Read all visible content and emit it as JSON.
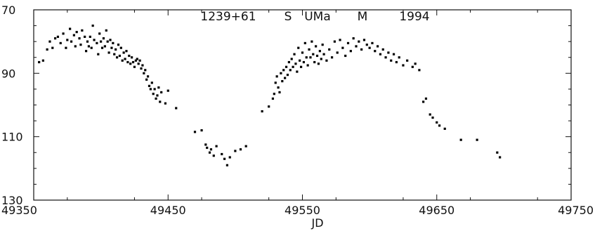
{
  "chart_data": {
    "type": "scatter",
    "title_parts": [
      "1239+61",
      "S",
      "UMa",
      "M",
      "1994"
    ],
    "xlabel": "JD",
    "ylabel": "",
    "xlim": [
      49350,
      49750
    ],
    "ylim": [
      70,
      130
    ],
    "y_inverted": true,
    "x_ticks": [
      49350,
      49450,
      49550,
      49650,
      49750
    ],
    "y_ticks": [
      70,
      90,
      110,
      130
    ],
    "grid": false,
    "legend": "none",
    "point_color": "#000000",
    "points": [
      [
        49354,
        86.5
      ],
      [
        49357,
        86
      ],
      [
        49360,
        82.5
      ],
      [
        49362,
        80
      ],
      [
        49364,
        82
      ],
      [
        49366,
        79
      ],
      [
        49368,
        78.5
      ],
      [
        49370,
        80.5
      ],
      [
        49372,
        77.5
      ],
      [
        49374,
        82
      ],
      [
        49375,
        79.5
      ],
      [
        49377,
        76
      ],
      [
        49378,
        80
      ],
      [
        49380,
        78
      ],
      [
        49381,
        81.5
      ],
      [
        49382,
        77
      ],
      [
        49384,
        79
      ],
      [
        49385,
        81
      ],
      [
        49386,
        76.5
      ],
      [
        49388,
        78.5
      ],
      [
        49389,
        83
      ],
      [
        49390,
        80
      ],
      [
        49391,
        81.5
      ],
      [
        49392,
        78.5
      ],
      [
        49393,
        82
      ],
      [
        49394,
        75
      ],
      [
        49395,
        79.5
      ],
      [
        49397,
        80.5
      ],
      [
        49398,
        84
      ],
      [
        49399,
        77.5
      ],
      [
        49400,
        80
      ],
      [
        49401,
        82
      ],
      [
        49402,
        79
      ],
      [
        49403,
        81.5
      ],
      [
        49404,
        76.5
      ],
      [
        49405,
        80
      ],
      [
        49406,
        83.5
      ],
      [
        49407,
        79.5
      ],
      [
        49408,
        82
      ],
      [
        49409,
        80.5
      ],
      [
        49410,
        84
      ],
      [
        49411,
        82.5
      ],
      [
        49412,
        85
      ],
      [
        49413,
        81
      ],
      [
        49414,
        84.5
      ],
      [
        49415,
        82
      ],
      [
        49416,
        86
      ],
      [
        49417,
        83.5
      ],
      [
        49418,
        85.5
      ],
      [
        49419,
        83
      ],
      [
        49420,
        86.5
      ],
      [
        49421,
        84.5
      ],
      [
        49422,
        87
      ],
      [
        49423,
        85
      ],
      [
        49424,
        86.5
      ],
      [
        49425,
        88
      ],
      [
        49426,
        86
      ],
      [
        49427,
        85.5
      ],
      [
        49428,
        87
      ],
      [
        49429,
        86
      ],
      [
        49430,
        88.5
      ],
      [
        49431,
        87.5
      ],
      [
        49432,
        90
      ],
      [
        49433,
        89
      ],
      [
        49434,
        92
      ],
      [
        49435,
        91
      ],
      [
        49436,
        94
      ],
      [
        49437,
        95
      ],
      [
        49438,
        93
      ],
      [
        49439,
        96.5
      ],
      [
        49440,
        95
      ],
      [
        49441,
        98
      ],
      [
        49442,
        97
      ],
      [
        49443,
        94.5
      ],
      [
        49444,
        99
      ],
      [
        49445,
        96
      ],
      [
        49448,
        99.5
      ],
      [
        49450,
        95.5
      ],
      [
        49456,
        101
      ],
      [
        49470,
        108.5
      ],
      [
        49475,
        108
      ],
      [
        49478,
        112.5
      ],
      [
        49479,
        113.5
      ],
      [
        49481,
        115
      ],
      [
        49482,
        114
      ],
      [
        49484,
        116
      ],
      [
        49486,
        113
      ],
      [
        49490,
        115.5
      ],
      [
        49492,
        117
      ],
      [
        49494,
        119
      ],
      [
        49496,
        116.5
      ],
      [
        49500,
        114.5
      ],
      [
        49504,
        114
      ],
      [
        49508,
        113
      ],
      [
        49520,
        102
      ],
      [
        49525,
        100.5
      ],
      [
        49528,
        98
      ],
      [
        49529,
        96.5
      ],
      [
        49530,
        93
      ],
      [
        49531,
        91
      ],
      [
        49532,
        94.5
      ],
      [
        49533,
        96
      ],
      [
        49534,
        90
      ],
      [
        49535,
        92.5
      ],
      [
        49536,
        89
      ],
      [
        49537,
        91.5
      ],
      [
        49538,
        88
      ],
      [
        49539,
        90.5
      ],
      [
        49540,
        86.5
      ],
      [
        49541,
        89
      ],
      [
        49542,
        85.5
      ],
      [
        49543,
        88
      ],
      [
        49544,
        84
      ],
      [
        49545,
        87
      ],
      [
        49546,
        89.5
      ],
      [
        49547,
        82
      ],
      [
        49548,
        86
      ],
      [
        49549,
        88
      ],
      [
        49550,
        83.5
      ],
      [
        49551,
        86.5
      ],
      [
        49552,
        80.5
      ],
      [
        49553,
        85
      ],
      [
        49554,
        87.5
      ],
      [
        49555,
        82.5
      ],
      [
        49556,
        85
      ],
      [
        49557,
        80
      ],
      [
        49558,
        84
      ],
      [
        49559,
        86.5
      ],
      [
        49560,
        81.5
      ],
      [
        49561,
        84.5
      ],
      [
        49562,
        87
      ],
      [
        49563,
        83
      ],
      [
        49564,
        85.5
      ],
      [
        49565,
        81
      ],
      [
        49566,
        84
      ],
      [
        49568,
        86
      ],
      [
        49570,
        82.5
      ],
      [
        49572,
        85
      ],
      [
        49574,
        80
      ],
      [
        49576,
        83.5
      ],
      [
        49578,
        79.5
      ],
      [
        49580,
        82
      ],
      [
        49582,
        84.5
      ],
      [
        49584,
        80.5
      ],
      [
        49586,
        83
      ],
      [
        49588,
        79
      ],
      [
        49590,
        81.5
      ],
      [
        49592,
        80
      ],
      [
        49594,
        82.5
      ],
      [
        49596,
        79.5
      ],
      [
        49598,
        81
      ],
      [
        49600,
        82
      ],
      [
        49602,
        80.5
      ],
      [
        49604,
        83
      ],
      [
        49606,
        81.5
      ],
      [
        49608,
        84
      ],
      [
        49610,
        82.5
      ],
      [
        49612,
        85
      ],
      [
        49614,
        83.5
      ],
      [
        49616,
        86
      ],
      [
        49618,
        84
      ],
      [
        49620,
        86.5
      ],
      [
        49622,
        85
      ],
      [
        49625,
        87.5
      ],
      [
        49628,
        86
      ],
      [
        49632,
        88
      ],
      [
        49634,
        87
      ],
      [
        49637,
        89
      ],
      [
        49640,
        99
      ],
      [
        49642,
        98
      ],
      [
        49645,
        103
      ],
      [
        49647,
        104
      ],
      [
        49650,
        105.5
      ],
      [
        49652,
        106.5
      ],
      [
        49656,
        107.5
      ],
      [
        49668,
        111
      ],
      [
        49680,
        111
      ],
      [
        49695,
        115
      ],
      [
        49697,
        116.5
      ]
    ]
  }
}
